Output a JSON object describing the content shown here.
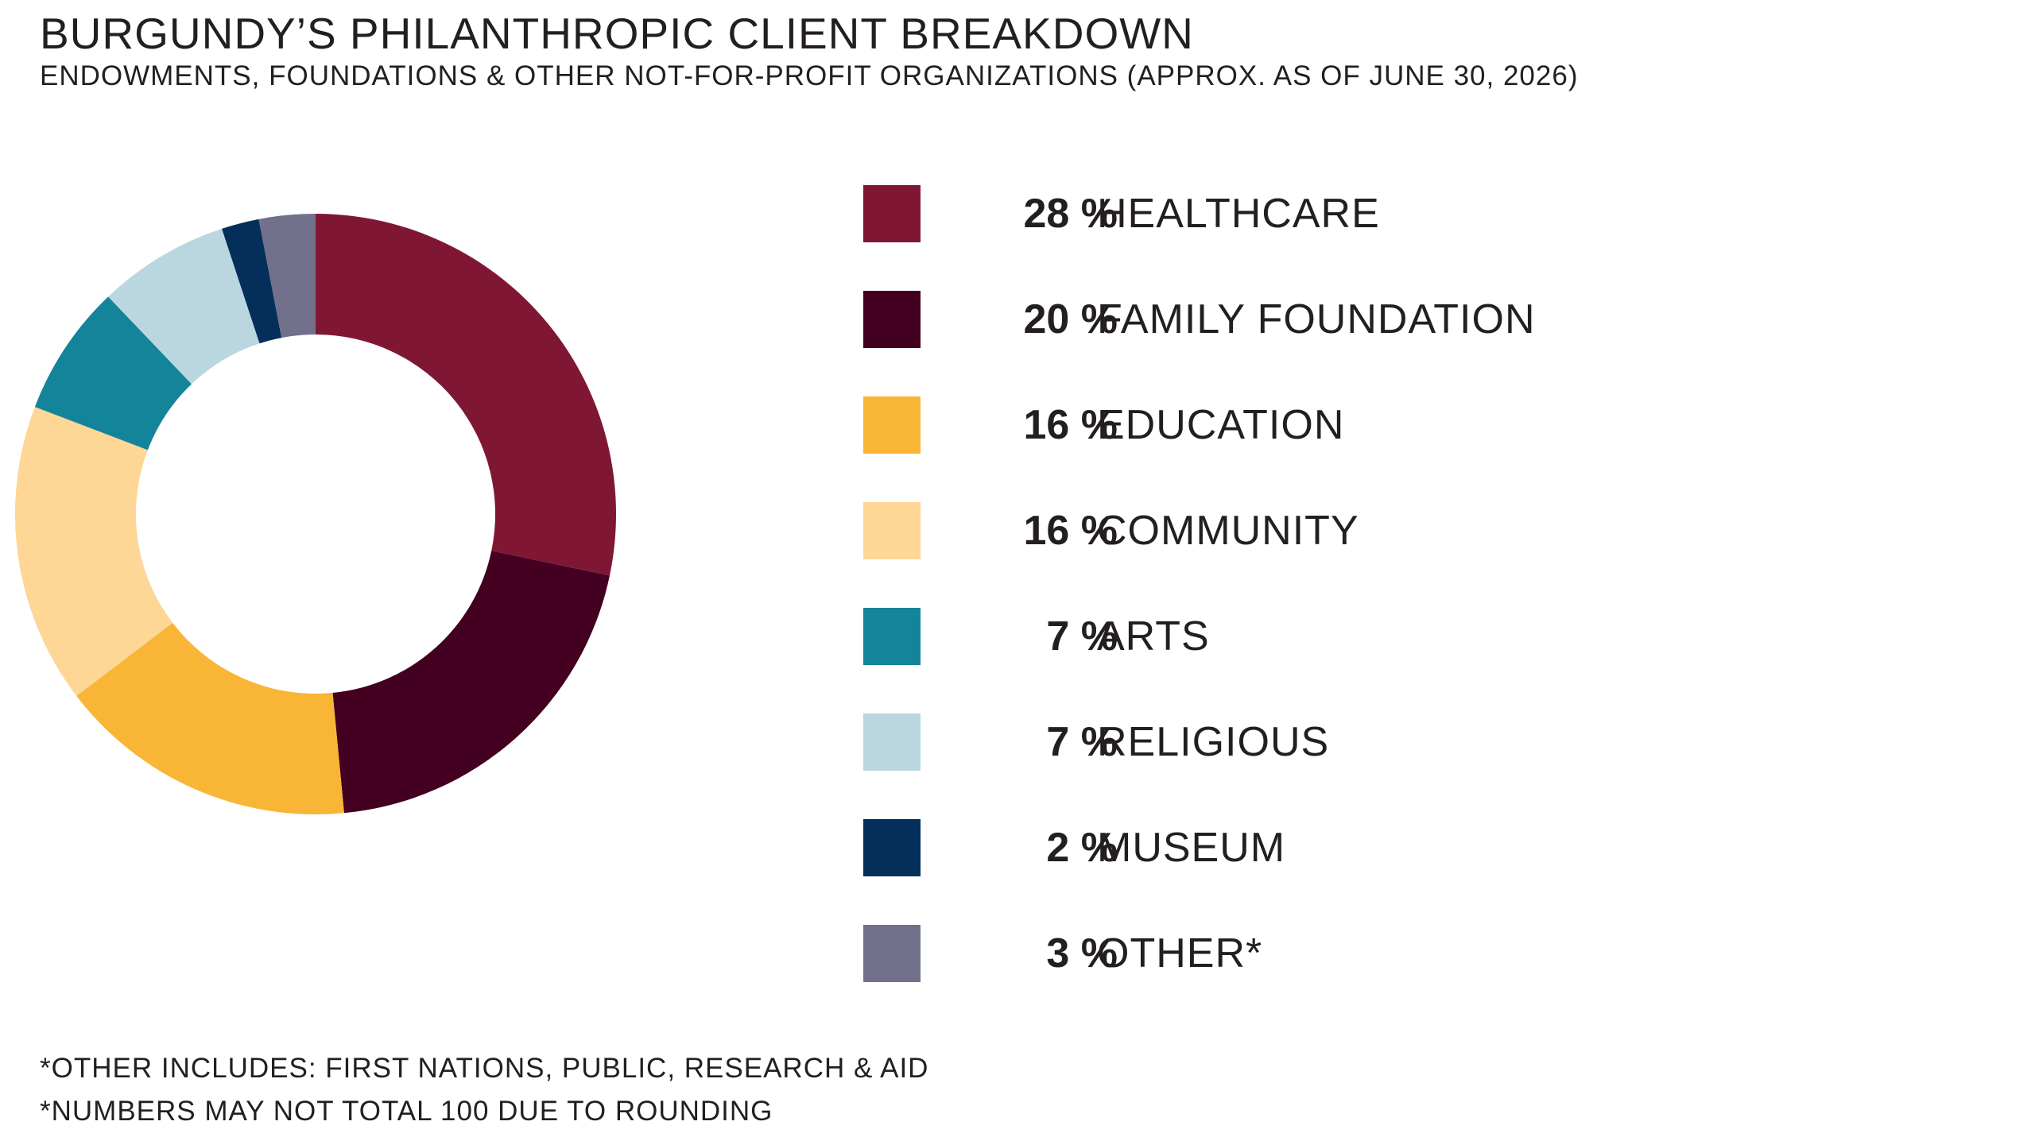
{
  "title": "BURGUNDY’S PHILANTHROPIC CLIENT BREAKDOWN",
  "subtitle": "ENDOWMENTS, FOUNDATIONS & OTHER NOT-FOR-PROFIT ORGANIZATIONS (APPROX. AS OF JUNE 30, 2026)",
  "chart_data": {
    "type": "pie",
    "style": "donut",
    "legend_position": "right",
    "slices": [
      {
        "label": "HEALTHCARE",
        "value": 28,
        "value_label": "28 %",
        "color": "#7f1734"
      },
      {
        "label": "FAMILY FOUNDATION",
        "value": 20,
        "value_label": "20 %",
        "color": "#430020"
      },
      {
        "label": "EDUCATION",
        "value": 16,
        "value_label": "16 %",
        "color": "#f9b536"
      },
      {
        "label": "COMMUNITY",
        "value": 16,
        "value_label": "16 %",
        "color": "#fed696"
      },
      {
        "label": "ARTS",
        "value": 7,
        "value_label": "7 %",
        "color": "#13849a"
      },
      {
        "label": "RELIGIOUS",
        "value": 7,
        "value_label": "7 %",
        "color": "#bad7e0"
      },
      {
        "label": "MUSEUM",
        "value": 2,
        "value_label": "2 %",
        "color": "#032f5a"
      },
      {
        "label": "OTHER*",
        "value": 3,
        "value_label": "3 %",
        "color": "#71718c"
      }
    ]
  },
  "footnotes": [
    "*OTHER INCLUDES: FIRST NATIONS, PUBLIC, RESEARCH & AID",
    "*NUMBERS MAY NOT TOTAL 100 DUE TO ROUNDING"
  ]
}
